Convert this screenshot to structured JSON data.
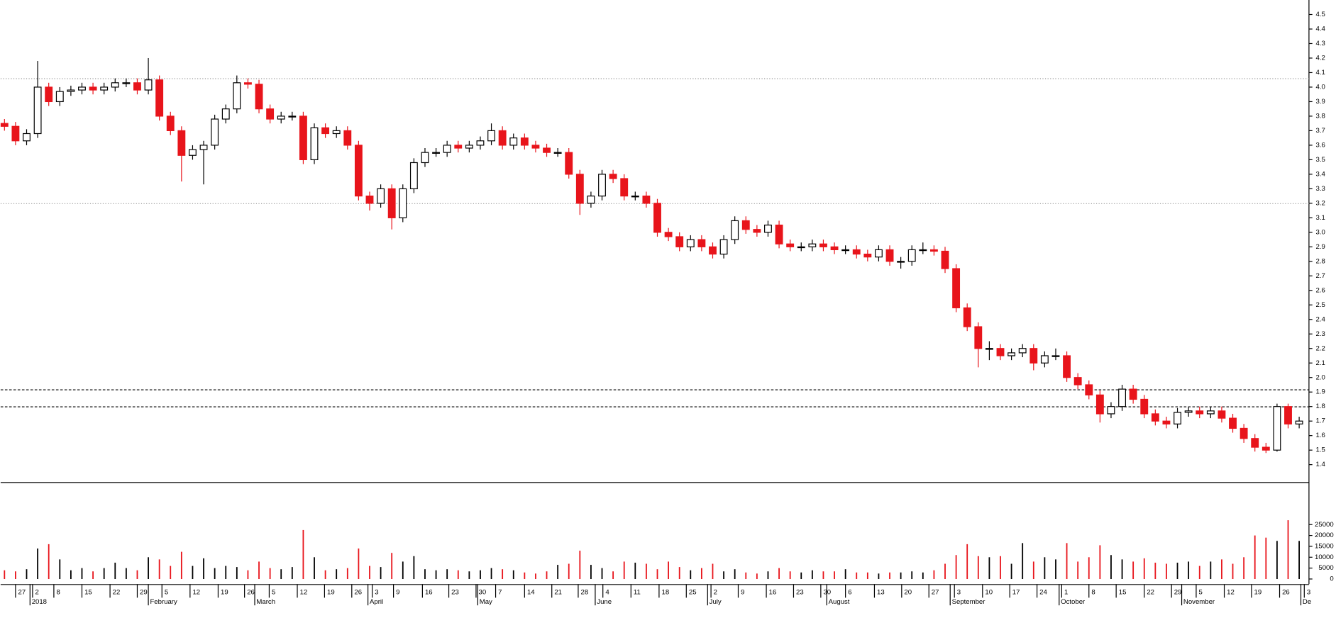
{
  "chart_data": {
    "type": "candlestick",
    "up_color": "#ffffff",
    "down_color": "#e8141b",
    "ylim": [
      1.28,
      4.6
    ],
    "yticks": [
      1.4,
      1.5,
      1.6,
      1.7,
      1.8,
      1.9,
      {
        "value": 2,
        "label": "2.0"
      },
      2.1,
      2.2,
      2.3,
      2.4,
      2.5,
      2.6,
      2.7,
      2.8,
      2.9,
      {
        "value": 3,
        "label": "3.0"
      },
      3.1,
      3.2,
      3.3,
      3.4,
      3.5,
      3.6,
      3.7,
      3.8,
      3.9,
      {
        "value": 4,
        "label": "4.0"
      },
      4.1,
      4.2,
      4.3,
      4.4,
      4.5
    ],
    "volume_ylim": [
      -1562.5,
      43750
    ],
    "volume_yticks": [
      0,
      5000,
      10000,
      15000,
      20000,
      25000
    ],
    "hlines": [
      4.06,
      3.2,
      1.92,
      1.8
    ],
    "xlim": [
      -0.3,
      117.8
    ],
    "xticks": [
      {
        "value": 1.0,
        "label": "27"
      },
      {
        "value": 2.54,
        "label": "2"
      },
      {
        "value": 4.46,
        "label": "8"
      },
      {
        "value": 7.0,
        "label": "15"
      },
      {
        "value": 9.54,
        "label": "22"
      },
      {
        "value": 12.0,
        "label": "29"
      },
      {
        "value": 14.23,
        "label": "5"
      },
      {
        "value": 16.77,
        "label": "12"
      },
      {
        "value": 19.31,
        "label": "19"
      },
      {
        "value": 21.69,
        "label": "26"
      },
      {
        "value": 23.92,
        "label": "5"
      },
      {
        "value": 26.46,
        "label": "12"
      },
      {
        "value": 28.92,
        "label": "19"
      },
      {
        "value": 31.38,
        "label": "26"
      },
      {
        "value": 33.23,
        "label": "3"
      },
      {
        "value": 35.15,
        "label": "9"
      },
      {
        "value": 37.77,
        "label": "16"
      },
      {
        "value": 40.15,
        "label": "23"
      },
      {
        "value": 42.62,
        "label": "30"
      },
      {
        "value": 44.38,
        "label": "7"
      },
      {
        "value": 47.0,
        "label": "14"
      },
      {
        "value": 49.46,
        "label": "21"
      },
      {
        "value": 51.85,
        "label": "28"
      },
      {
        "value": 54.08,
        "label": "4"
      },
      {
        "value": 56.62,
        "label": "11"
      },
      {
        "value": 59.15,
        "label": "18"
      },
      {
        "value": 61.62,
        "label": "25"
      },
      {
        "value": 63.85,
        "label": "2"
      },
      {
        "value": 66.31,
        "label": "9"
      },
      {
        "value": 68.85,
        "label": "16"
      },
      {
        "value": 71.31,
        "label": "23"
      },
      {
        "value": 73.77,
        "label": "30"
      },
      {
        "value": 76.0,
        "label": "6"
      },
      {
        "value": 78.62,
        "label": "13"
      },
      {
        "value": 81.08,
        "label": "20"
      },
      {
        "value": 83.54,
        "label": "27"
      },
      {
        "value": 85.85,
        "label": "3"
      },
      {
        "value": 88.38,
        "label": "10"
      },
      {
        "value": 90.85,
        "label": "17"
      },
      {
        "value": 93.31,
        "label": "24"
      },
      {
        "value": 95.54,
        "label": "1"
      },
      {
        "value": 98.0,
        "label": "8"
      },
      {
        "value": 100.46,
        "label": "15"
      },
      {
        "value": 103.0,
        "label": "22"
      },
      {
        "value": 105.46,
        "label": "29"
      },
      {
        "value": 107.69,
        "label": "5"
      },
      {
        "value": 110.23,
        "label": "12"
      },
      {
        "value": 112.69,
        "label": "19"
      },
      {
        "value": 115.23,
        "label": "26"
      },
      {
        "value": 117.46,
        "label": "3"
      }
    ],
    "month_ticks": [
      {
        "value": 2.3,
        "label": "2018"
      },
      {
        "value": 13.0,
        "label": "February"
      },
      {
        "value": 22.6,
        "label": "March"
      },
      {
        "value": 32.85,
        "label": "April"
      },
      {
        "value": 42.77,
        "label": "May"
      },
      {
        "value": 53.38,
        "label": "June"
      },
      {
        "value": 63.54,
        "label": "July"
      },
      {
        "value": 74.3,
        "label": "August"
      },
      {
        "value": 85.46,
        "label": "September"
      },
      {
        "value": 95.3,
        "label": "October"
      },
      {
        "value": 106.38,
        "label": "November"
      },
      {
        "value": 117.15,
        "label": "De"
      }
    ],
    "open": [
      3.75,
      3.73,
      3.63,
      3.68,
      4.0,
      3.9,
      3.97,
      3.98,
      4.0,
      3.98,
      4.0,
      4.03,
      4.03,
      3.98,
      4.05,
      3.8,
      3.7,
      3.53,
      3.57,
      3.6,
      3.78,
      3.85,
      4.03,
      4.02,
      3.85,
      3.78,
      3.8,
      3.8,
      3.5,
      3.72,
      3.68,
      3.7,
      3.6,
      3.25,
      3.2,
      3.3,
      3.1,
      3.3,
      3.48,
      3.55,
      3.55,
      3.6,
      3.58,
      3.6,
      3.63,
      3.7,
      3.6,
      3.65,
      3.6,
      3.58,
      3.55,
      3.55,
      3.4,
      3.2,
      3.25,
      3.4,
      3.37,
      3.25,
      3.25,
      3.2,
      3.0,
      2.97,
      2.9,
      2.95,
      2.9,
      2.85,
      2.95,
      3.08,
      3.02,
      3.0,
      3.05,
      2.92,
      2.9,
      2.9,
      2.92,
      2.9,
      2.88,
      2.88,
      2.85,
      2.83,
      2.88,
      2.8,
      2.8,
      2.88,
      2.88,
      2.87,
      2.75,
      2.48,
      2.35,
      2.2,
      2.2,
      2.15,
      2.17,
      2.2,
      2.1,
      2.15,
      2.15,
      2.0,
      1.95,
      1.88,
      1.75,
      1.8,
      1.92,
      1.85,
      1.75,
      1.7,
      1.68,
      1.76,
      1.77,
      1.75,
      1.77,
      1.72,
      1.65,
      1.58,
      1.52,
      1.5,
      1.8,
      1.68
    ],
    "close": [
      3.73,
      3.63,
      3.68,
      4.0,
      3.9,
      3.97,
      3.98,
      4.0,
      3.98,
      4.0,
      4.03,
      4.03,
      3.98,
      4.05,
      3.8,
      3.7,
      3.53,
      3.57,
      3.6,
      3.78,
      3.85,
      4.03,
      4.02,
      3.85,
      3.78,
      3.8,
      3.8,
      3.5,
      3.72,
      3.68,
      3.7,
      3.6,
      3.25,
      3.2,
      3.3,
      3.1,
      3.3,
      3.48,
      3.55,
      3.55,
      3.6,
      3.58,
      3.6,
      3.63,
      3.7,
      3.6,
      3.65,
      3.6,
      3.58,
      3.55,
      3.55,
      3.4,
      3.2,
      3.25,
      3.4,
      3.37,
      3.25,
      3.25,
      3.2,
      3.0,
      2.97,
      2.9,
      2.95,
      2.9,
      2.85,
      2.95,
      3.08,
      3.02,
      3.0,
      3.05,
      2.92,
      2.9,
      2.9,
      2.92,
      2.9,
      2.88,
      2.88,
      2.85,
      2.83,
      2.88,
      2.8,
      2.8,
      2.88,
      2.88,
      2.87,
      2.75,
      2.48,
      2.35,
      2.2,
      2.2,
      2.15,
      2.17,
      2.2,
      2.1,
      2.15,
      2.15,
      2.0,
      1.95,
      1.88,
      1.75,
      1.8,
      1.92,
      1.85,
      1.75,
      1.7,
      1.68,
      1.76,
      1.77,
      1.75,
      1.77,
      1.72,
      1.65,
      1.58,
      1.52,
      1.5,
      1.8,
      1.68,
      1.7
    ],
    "high": [
      3.78,
      3.76,
      3.71,
      4.18,
      4.03,
      4.0,
      4.01,
      4.03,
      4.03,
      4.03,
      4.06,
      4.06,
      4.06,
      4.2,
      4.08,
      3.83,
      3.73,
      3.6,
      3.63,
      3.81,
      3.88,
      4.08,
      4.06,
      4.05,
      3.88,
      3.83,
      3.83,
      3.83,
      3.75,
      3.75,
      3.73,
      3.73,
      3.63,
      3.28,
      3.33,
      3.33,
      3.33,
      3.51,
      3.58,
      3.58,
      3.63,
      3.63,
      3.63,
      3.66,
      3.75,
      3.73,
      3.68,
      3.68,
      3.63,
      3.61,
      3.58,
      3.58,
      3.43,
      3.28,
      3.43,
      3.43,
      3.4,
      3.28,
      3.28,
      3.23,
      3.03,
      3.0,
      2.98,
      2.98,
      2.93,
      2.98,
      3.11,
      3.11,
      3.05,
      3.08,
      3.08,
      2.95,
      2.93,
      2.95,
      2.95,
      2.93,
      2.91,
      2.91,
      2.88,
      2.91,
      2.91,
      2.83,
      2.91,
      2.93,
      2.91,
      2.9,
      2.78,
      2.51,
      2.38,
      2.25,
      2.23,
      2.2,
      2.23,
      2.23,
      2.18,
      2.2,
      2.18,
      2.03,
      1.98,
      1.91,
      1.83,
      1.95,
      1.95,
      1.88,
      1.78,
      1.73,
      1.79,
      1.8,
      1.8,
      1.8,
      1.8,
      1.75,
      1.68,
      1.61,
      1.55,
      1.82,
      1.82,
      1.73
    ],
    "low": [
      3.7,
      3.6,
      3.6,
      3.65,
      3.87,
      3.87,
      3.94,
      3.95,
      3.95,
      3.95,
      3.97,
      4.0,
      3.95,
      3.95,
      3.77,
      3.67,
      3.35,
      3.5,
      3.33,
      3.57,
      3.75,
      3.82,
      3.99,
      3.82,
      3.75,
      3.75,
      3.77,
      3.47,
      3.47,
      3.65,
      3.65,
      3.57,
      3.22,
      3.15,
      3.17,
      3.02,
      3.07,
      3.27,
      3.45,
      3.52,
      3.52,
      3.55,
      3.55,
      3.57,
      3.6,
      3.57,
      3.57,
      3.57,
      3.55,
      3.52,
      3.52,
      3.37,
      3.12,
      3.17,
      3.22,
      3.34,
      3.22,
      3.22,
      3.17,
      2.97,
      2.94,
      2.87,
      2.87,
      2.87,
      2.82,
      2.82,
      2.92,
      2.99,
      2.97,
      2.97,
      2.89,
      2.87,
      2.87,
      2.87,
      2.87,
      2.85,
      2.85,
      2.82,
      2.8,
      2.8,
      2.77,
      2.75,
      2.77,
      2.85,
      2.84,
      2.72,
      2.45,
      2.32,
      2.07,
      2.12,
      2.12,
      2.12,
      2.14,
      2.05,
      2.07,
      2.12,
      1.97,
      1.92,
      1.85,
      1.69,
      1.72,
      1.77,
      1.82,
      1.72,
      1.67,
      1.65,
      1.65,
      1.73,
      1.72,
      1.72,
      1.69,
      1.62,
      1.55,
      1.49,
      1.48,
      1.49,
      1.65,
      1.65
    ],
    "volume": [
      4000,
      3500,
      4500,
      14000,
      16000,
      9000,
      4000,
      5000,
      3500,
      5000,
      7500,
      5000,
      4000,
      10000,
      9000,
      6000,
      12500,
      6000,
      9500,
      5000,
      6000,
      5500,
      4000,
      8000,
      5000,
      4500,
      5500,
      22500,
      10000,
      4000,
      4500,
      5000,
      14000,
      6000,
      5500,
      12000,
      8000,
      10500,
      4500,
      4000,
      4500,
      4000,
      3500,
      4000,
      5000,
      4500,
      4000,
      3000,
      2500,
      3500,
      6500,
      7000,
      13000,
      6500,
      5000,
      3500,
      8000,
      7500,
      7000,
      4500,
      8000,
      5500,
      4000,
      5000,
      7000,
      3500,
      4500,
      3000,
      2500,
      3500,
      5000,
      3500,
      3000,
      4000,
      3500,
      3500,
      4500,
      3000,
      3000,
      2500,
      3000,
      3000,
      3500,
      3000,
      4000,
      7000,
      11000,
      16000,
      10500,
      10000,
      10500,
      7000,
      16500,
      8000,
      10000,
      9000,
      16500,
      8000,
      10000,
      15500,
      11000,
      9000,
      8000,
      9500,
      7500,
      7000,
      7500,
      8000,
      6000,
      8000,
      9000,
      7000,
      10000,
      20000,
      19000,
      17500,
      27000,
      17500
    ]
  }
}
